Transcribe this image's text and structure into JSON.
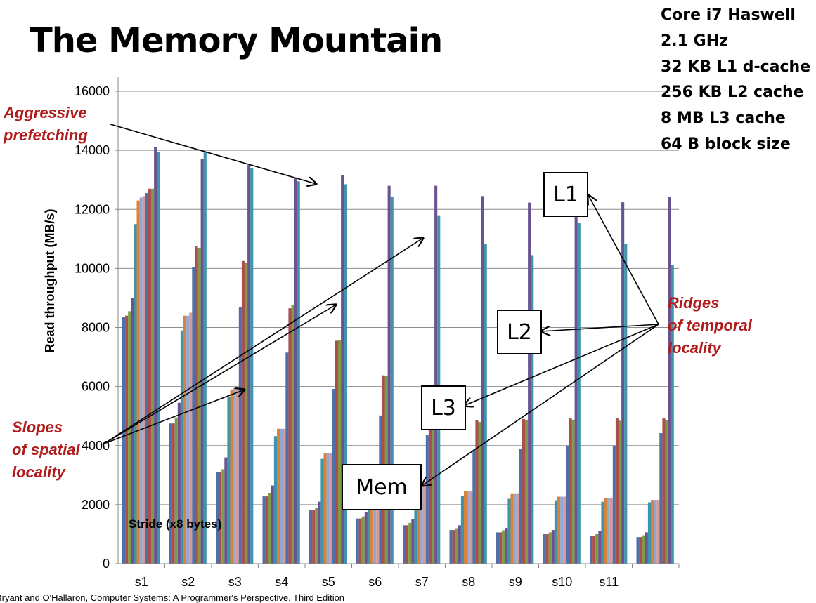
{
  "slide": {
    "title": "The Memory Mountain",
    "footer": "Bryant and O'Hallaron, Computer Systems: A Programmer's Perspective, Third Edition",
    "specs": [
      "Core i7 Haswell",
      "2.1 GHz",
      "32 KB L1 d-cache",
      "256 KB L2 cache",
      "8 MB L3 cache",
      "64 B block size"
    ],
    "annotations": {
      "aggressive_prefetching": [
        "Aggressive",
        "prefetching"
      ],
      "slopes": [
        "Slopes",
        "of spatial",
        "locality"
      ],
      "ridges": [
        "Ridges",
        "of temporal",
        "locality"
      ]
    },
    "boxes": {
      "l1": "L1",
      "l2": "L2",
      "l3": "L3",
      "mem": "Mem"
    }
  },
  "colors": {
    "series": [
      "#4f6fa8",
      "#a9504d",
      "#7f9a48",
      "#6a5391",
      "#3d94ab",
      "#d9833a",
      "#93a8d0",
      "#d39a98"
    ],
    "arrow": "#000000",
    "annotation": "#b01c1c"
  },
  "chart_data": {
    "type": "bar",
    "title": "",
    "xlabel": "Stride (x8 bytes)",
    "ylabel": "Read throughput (MB/s)",
    "ylim": [
      0,
      16000
    ],
    "yticks": [
      0,
      2000,
      4000,
      6000,
      8000,
      10000,
      12000,
      14000,
      16000
    ],
    "grid": true,
    "categories": [
      "s1",
      "s2",
      "s3",
      "s4",
      "s5",
      "s6",
      "s7",
      "s8",
      "s9",
      "s10",
      "s11",
      ""
    ],
    "groups": [
      [
        8350,
        8400,
        8550,
        9000,
        11500,
        12300,
        12400,
        12450,
        12550,
        12700,
        12700,
        14100,
        13950
      ],
      [
        4750,
        4750,
        4950,
        5450,
        7900,
        8400,
        8400,
        8500,
        10050,
        10750,
        10700,
        13700,
        13950
      ],
      [
        3100,
        3100,
        3200,
        3600,
        5650,
        5900,
        5950,
        5950,
        8700,
        10250,
        10200,
        13500,
        13400
      ],
      [
        2280,
        2280,
        2400,
        2650,
        4320,
        4570,
        4570,
        4570,
        7150,
        8650,
        8750,
        13050,
        12950
      ],
      [
        1820,
        1820,
        1900,
        2100,
        3550,
        3750,
        3750,
        3750,
        5920,
        7550,
        7580,
        13150,
        12850
      ],
      [
        1530,
        1530,
        1600,
        1750,
        2950,
        3150,
        3150,
        3150,
        5020,
        6380,
        6350,
        12800,
        12420
      ],
      [
        1300,
        1300,
        1380,
        1500,
        2550,
        2750,
        2750,
        2750,
        4350,
        5550,
        5550,
        12800,
        11800
      ],
      [
        1140,
        1140,
        1200,
        1300,
        2300,
        2450,
        2450,
        2450,
        3850,
        4850,
        4800,
        12450,
        10830
      ],
      [
        1060,
        1060,
        1130,
        1210,
        2200,
        2360,
        2360,
        2360,
        3900,
        4900,
        4880,
        12230,
        10450
      ],
      [
        1000,
        1000,
        1060,
        1140,
        2150,
        2270,
        2270,
        2270,
        4000,
        4920,
        4880,
        12240,
        11540
      ],
      [
        950,
        940,
        1010,
        1100,
        2100,
        2220,
        2220,
        2220,
        4000,
        4920,
        4840,
        12240,
        10840
      ],
      [
        900,
        900,
        960,
        1060,
        2080,
        2160,
        2160,
        2160,
        4420,
        4920,
        4860,
        12420,
        10120
      ]
    ]
  }
}
